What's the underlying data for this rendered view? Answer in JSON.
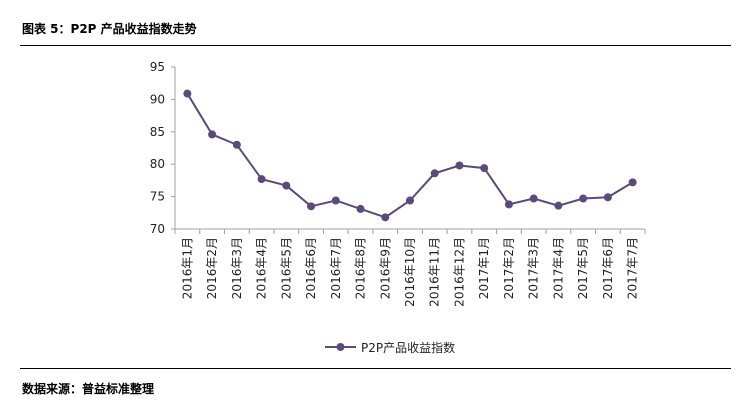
{
  "figure": {
    "title": "图表 5：P2P 产品收益指数走势",
    "source": "数据来源：普益标准整理"
  },
  "colors": {
    "series": "#5b4a7a",
    "axis": "#a0a0a0"
  },
  "chart_data": {
    "type": "line",
    "title": "",
    "xlabel": "",
    "ylabel": "",
    "ylim": [
      70,
      95
    ],
    "yticks": [
      70,
      75,
      80,
      85,
      90,
      95
    ],
    "grid": false,
    "legend_position": "bottom",
    "categories": [
      "2016年1月",
      "2016年2月",
      "2016年3月",
      "2016年4月",
      "2016年5月",
      "2016年6月",
      "2016年7月",
      "2016年8月",
      "2016年9月",
      "2016年10月",
      "2016年11月",
      "2016年12月",
      "2017年1月",
      "2017年2月",
      "2017年3月",
      "2017年4月",
      "2017年5月",
      "2017年6月",
      "2017年7月"
    ],
    "series": [
      {
        "name": "P2P产品收益指数",
        "values": [
          90.9,
          84.6,
          83.0,
          77.7,
          76.7,
          73.5,
          74.4,
          73.1,
          71.8,
          74.4,
          78.6,
          79.8,
          79.4,
          73.8,
          74.7,
          73.6,
          74.7,
          74.9,
          77.2
        ]
      }
    ]
  }
}
